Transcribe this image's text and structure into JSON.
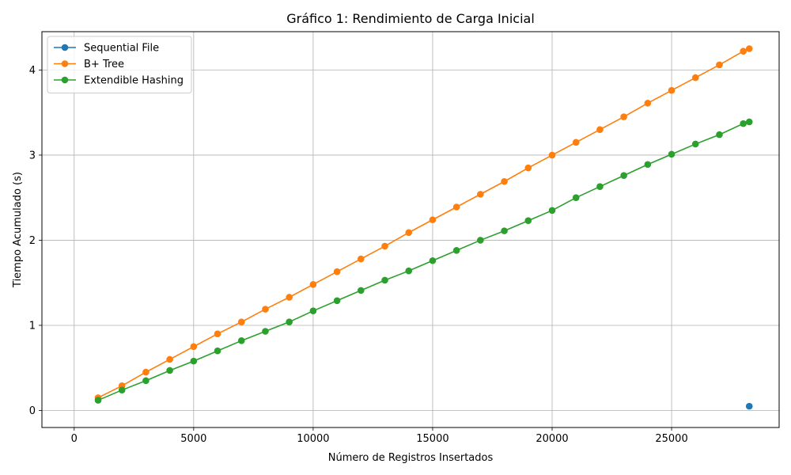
{
  "chart_data": {
    "type": "line",
    "title": "Gráfico 1: Rendimiento de Carga Inicial",
    "xlabel": "Número de Registros Insertados",
    "ylabel": "Tiempo Acumulado (s)",
    "xlim": [
      -1350,
      29500
    ],
    "ylim": [
      -0.2,
      4.45
    ],
    "xticks": [
      0,
      5000,
      10000,
      15000,
      20000,
      25000
    ],
    "xtick_labels": [
      "0",
      "5000",
      "10000",
      "15000",
      "20000",
      "25000"
    ],
    "yticks": [
      0,
      1,
      2,
      3,
      4
    ],
    "ytick_labels": [
      "0",
      "1",
      "2",
      "3",
      "4"
    ],
    "grid": true,
    "legend_position": "upper-left",
    "series": [
      {
        "name": "Sequential File",
        "color": "#1f77b4",
        "x": [
          28250
        ],
        "y": [
          0.05
        ]
      },
      {
        "name": "B+ Tree",
        "color": "#ff7f0e",
        "x": [
          1000,
          2000,
          3000,
          4000,
          5000,
          6000,
          7000,
          8000,
          9000,
          10000,
          11000,
          12000,
          13000,
          14000,
          15000,
          16000,
          17000,
          18000,
          19000,
          20000,
          21000,
          22000,
          23000,
          24000,
          25000,
          26000,
          27000,
          28000,
          28250
        ],
        "y": [
          0.15,
          0.29,
          0.45,
          0.6,
          0.75,
          0.9,
          1.04,
          1.19,
          1.33,
          1.48,
          1.63,
          1.78,
          1.93,
          2.09,
          2.24,
          2.39,
          2.54,
          2.69,
          2.85,
          3.0,
          3.15,
          3.3,
          3.45,
          3.61,
          3.76,
          3.91,
          4.06,
          4.22,
          4.25
        ]
      },
      {
        "name": "Extendible Hashing",
        "color": "#2ca02c",
        "x": [
          1000,
          2000,
          3000,
          4000,
          5000,
          6000,
          7000,
          8000,
          9000,
          10000,
          11000,
          12000,
          13000,
          14000,
          15000,
          16000,
          17000,
          18000,
          19000,
          20000,
          21000,
          22000,
          23000,
          24000,
          25000,
          26000,
          27000,
          28000,
          28250
        ],
        "y": [
          0.12,
          0.24,
          0.35,
          0.47,
          0.58,
          0.7,
          0.82,
          0.93,
          1.04,
          1.17,
          1.29,
          1.41,
          1.53,
          1.64,
          1.76,
          1.88,
          2.0,
          2.11,
          2.23,
          2.35,
          2.5,
          2.63,
          2.76,
          2.89,
          3.01,
          3.13,
          3.24,
          3.37,
          3.39
        ]
      }
    ]
  }
}
